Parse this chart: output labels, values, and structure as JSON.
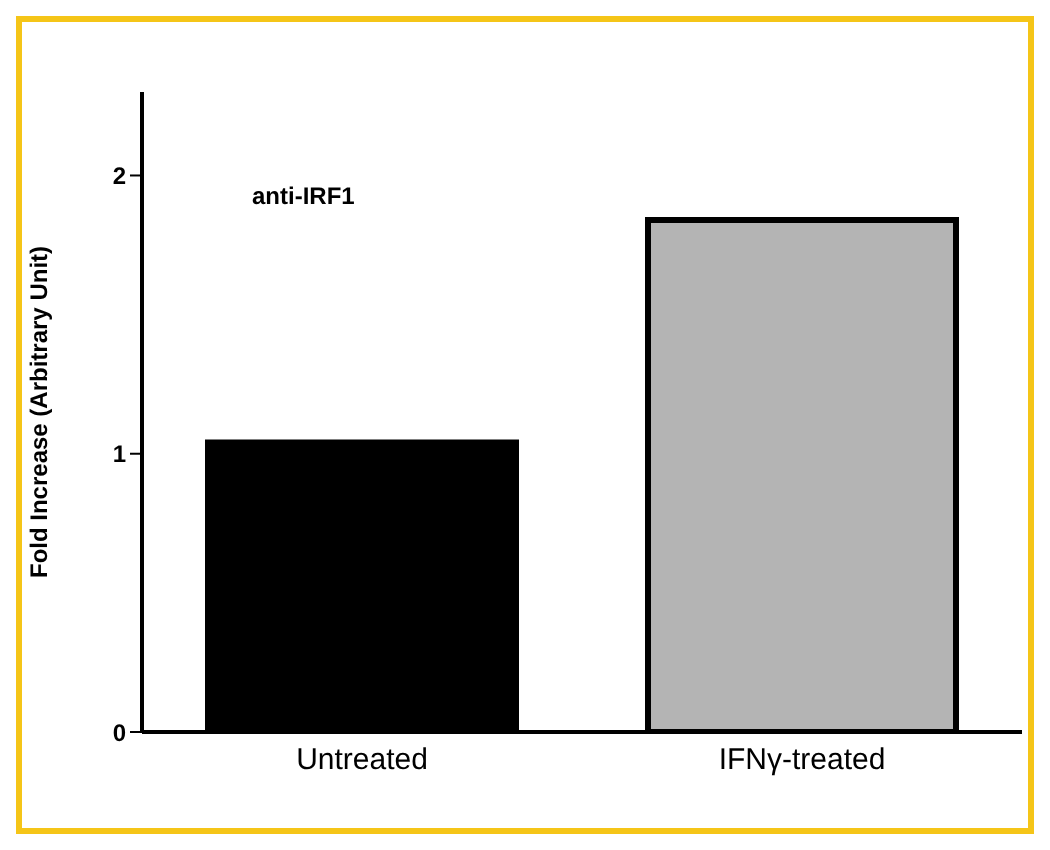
{
  "chart_data": {
    "type": "bar",
    "ylabel": "Fold Increase (Arbitrary Unit)",
    "annotations": [
      "anti-IRF1"
    ],
    "categories": [
      "Untreated",
      "IFNγ-treated"
    ],
    "values": [
      1.04,
      1.84
    ],
    "colors": [
      "#000000",
      "#b4b4b4"
    ],
    "ylim": [
      0,
      2.3
    ],
    "yticks": [
      0,
      1,
      2
    ],
    "grid": false,
    "legend": false
  }
}
